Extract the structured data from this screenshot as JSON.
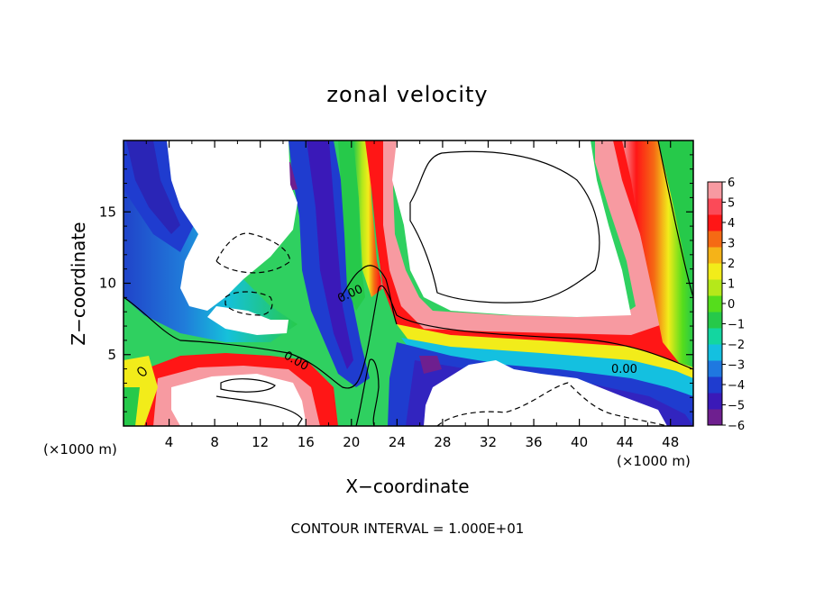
{
  "chart_data": {
    "type": "heatmap",
    "title": "zonal velocity",
    "xlabel": "X−coordinate",
    "ylabel": "Z−coordinate",
    "x_unit": "(×1000 m)",
    "y_unit": "(×1000 m)",
    "x_ticks": [
      "4",
      "8",
      "12",
      "16",
      "20",
      "24",
      "28",
      "32",
      "36",
      "40",
      "44",
      "48"
    ],
    "y_ticks": [
      "5",
      "10",
      "15"
    ],
    "xlim": [
      0,
      50
    ],
    "ylim": [
      0,
      20
    ],
    "colorbar_ticks": [
      "6",
      "5",
      "4",
      "3",
      "2",
      "1",
      "0",
      "−1",
      "−2",
      "−3",
      "−4",
      "−5",
      "−6"
    ],
    "colorbar_range": [
      -6,
      6
    ],
    "colorbar_colors": [
      "#6e1f8f",
      "#3a19b8",
      "#1f3ccf",
      "#1f78e0",
      "#14c0e0",
      "#13d6a0",
      "#26c94a",
      "#55dd1c",
      "#b5e81a",
      "#f2ec1a",
      "#f5b318",
      "#f56a14",
      "#ff1616",
      "#fb4a58",
      "#f79aa1"
    ],
    "contour_labels": [
      "0.00",
      "0.00",
      "0.00"
    ],
    "footer": "CONTOUR INTERVAL = 1.000E+01",
    "grid": false
  }
}
